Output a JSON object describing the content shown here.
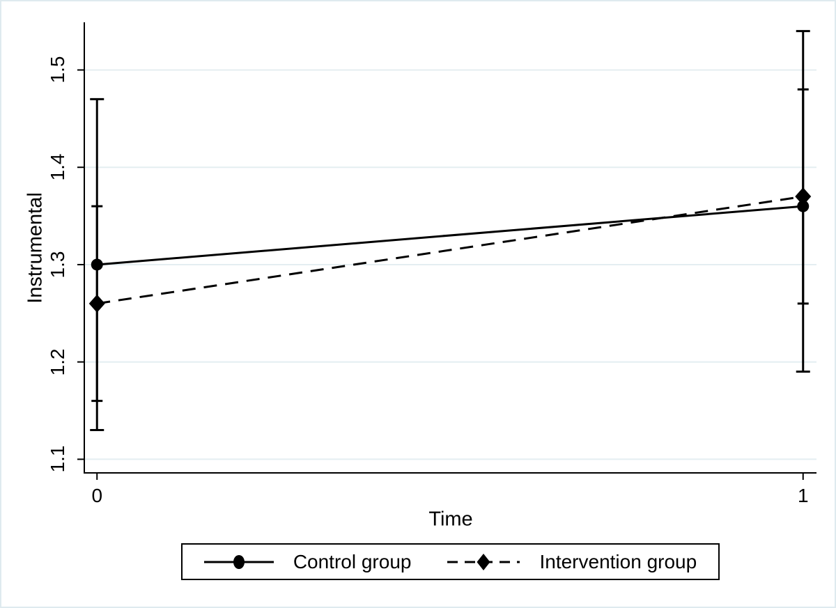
{
  "colors": {
    "foreground": "#000000",
    "grid": "#e4eef1",
    "background": "#ffffff",
    "frame_border": "#dfeaef",
    "legend_border": "#000000"
  },
  "chart_data": {
    "type": "line",
    "title": "",
    "xlabel": "Time",
    "ylabel": "Instrumental",
    "grid": true,
    "legend_position": "bottom",
    "x_ticks": [
      "0",
      "1"
    ],
    "x_tick_values": [
      0,
      1
    ],
    "y_ticks": [
      "1.1",
      "1.2",
      "1.3",
      "1.4",
      "1.5"
    ],
    "y_tick_values": [
      1.1,
      1.2,
      1.3,
      1.4,
      1.5
    ],
    "xlim": [
      -0.018,
      1.019
    ],
    "ylim": [
      1.086,
      1.549
    ],
    "series": [
      {
        "name": "Control group",
        "line": "solid",
        "marker": "circle",
        "x": [
          0,
          1
        ],
        "values": [
          1.3,
          1.36
        ],
        "ci_lower": [
          1.13,
          1.19
        ],
        "ci_upper": [
          1.47,
          1.54
        ]
      },
      {
        "name": "Intervention group",
        "line": "dashed",
        "marker": "diamond",
        "x": [
          0,
          1
        ],
        "values": [
          1.26,
          1.37
        ],
        "ci_lower": [
          1.16,
          1.26
        ],
        "ci_upper": [
          1.36,
          1.48
        ]
      }
    ]
  }
}
